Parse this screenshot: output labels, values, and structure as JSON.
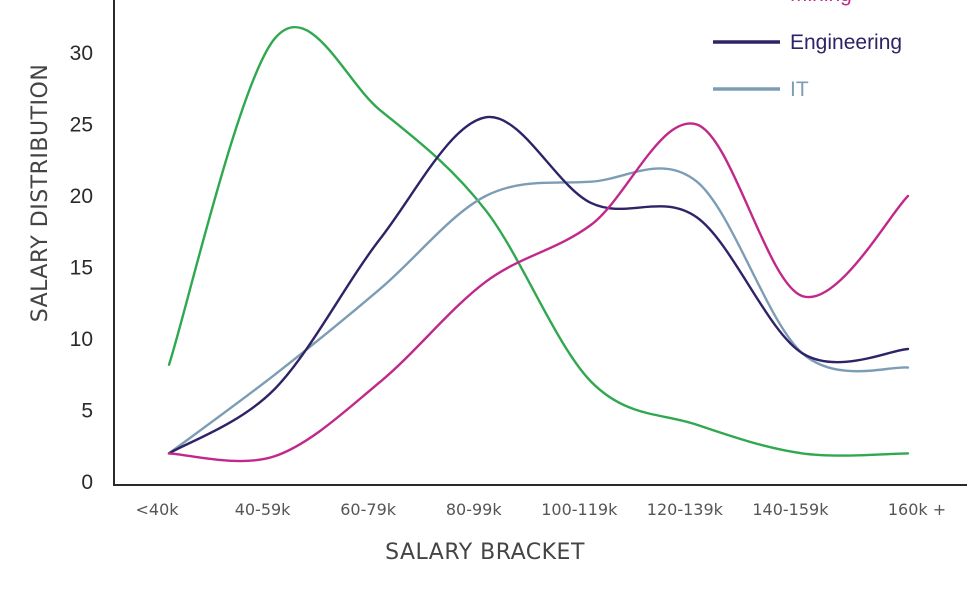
{
  "chart_data": {
    "type": "line",
    "title": "",
    "xlabel": "SALARY BRACKET",
    "ylabel": "SALARY DISTRIBUTION",
    "categories": [
      "<40k",
      "40-59k",
      "60-79k",
      "80-99k",
      "100-119k",
      "120-139k",
      "140-159k",
      "160k +"
    ],
    "yticks": [
      0,
      5,
      10,
      15,
      20,
      25,
      30
    ],
    "ylim": [
      0,
      35
    ],
    "grid": false,
    "legend_position": "top-right",
    "series": [
      {
        "name": "Mining",
        "color": "#c0288a",
        "values": [
          2,
          1.8,
          7,
          14,
          18,
          25,
          13,
          20
        ]
      },
      {
        "name": "Engineering",
        "color": "#2e2366",
        "values": [
          2,
          6.5,
          17,
          25.5,
          19.5,
          18.5,
          9,
          9.3
        ]
      },
      {
        "name": "IT",
        "color": "#7d9db5",
        "values": [
          2,
          7.5,
          13.5,
          20,
          21,
          21,
          9,
          8
        ]
      },
      {
        "name": "",
        "color": "#2fa84f",
        "values": [
          8.2,
          31,
          26,
          19,
          7,
          4,
          2,
          2
        ]
      }
    ]
  }
}
